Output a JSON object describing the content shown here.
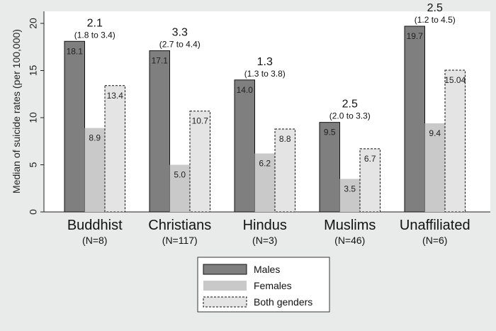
{
  "chart_data": {
    "type": "bar",
    "title": "",
    "xlabel": "",
    "ylabel": "Median of suicide rates (per 100,000)",
    "ylim": [
      0,
      20
    ],
    "yticks": [
      0,
      5,
      10,
      15,
      20
    ],
    "grid": false,
    "categories": [
      "Buddhist",
      "Christians",
      "Hindus",
      "Muslims",
      "Unaffiliated"
    ],
    "category_counts": [
      "(N=8)",
      "(N=117)",
      "(N=3)",
      "(N=46)",
      "(N=6)"
    ],
    "series": [
      {
        "name": "Males",
        "color": "#7f7f7f",
        "stroke": "#111111",
        "dashed": false,
        "values": [
          18.1,
          17.1,
          14.0,
          9.5,
          19.7
        ],
        "labels": [
          "18.1",
          "17.1",
          "14.0",
          "9.5",
          "19.7"
        ]
      },
      {
        "name": "Females",
        "color": "#c9c9c9",
        "stroke": "none",
        "dashed": false,
        "values": [
          8.9,
          5.0,
          6.2,
          3.5,
          9.4
        ],
        "labels": [
          "8.9",
          "5.0",
          "6.2",
          "3.5",
          "9.4"
        ]
      },
      {
        "name": "Both genders",
        "color": "#e4e4e4",
        "stroke": "#111111",
        "dashed": true,
        "values": [
          13.4,
          10.7,
          8.8,
          6.7,
          15.04
        ],
        "labels": [
          "13.4",
          "10.7",
          "8.8",
          "6.7",
          "15.04"
        ]
      }
    ],
    "ratios": [
      {
        "value": "2.1",
        "ci": "(1.8 to 3.4)"
      },
      {
        "value": "3.3",
        "ci": "(2.7 to 4.4)"
      },
      {
        "value": "1.3",
        "ci": "(1.3 to 3.8)"
      },
      {
        "value": "2.5",
        "ci": "(2.0 to 3.3)"
      },
      {
        "value": "2.5",
        "ci": "(1.2 to 4.5)"
      }
    ],
    "legend_position": "bottom-center"
  }
}
